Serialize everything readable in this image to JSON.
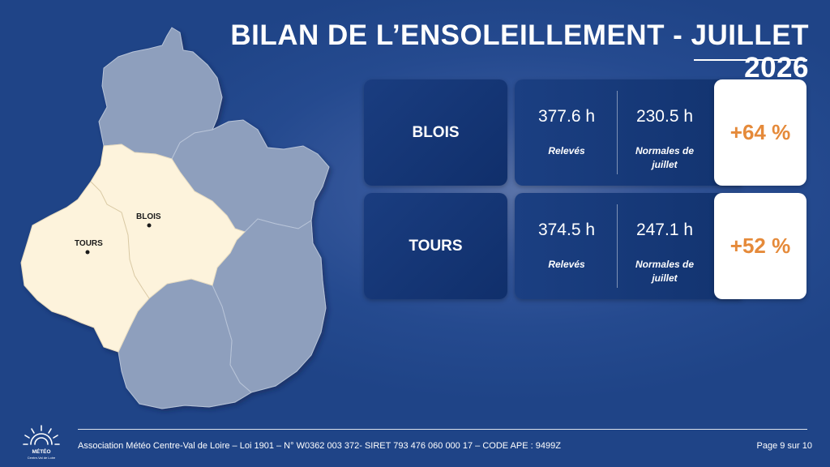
{
  "header": {
    "title": "BILAN DE L’ENSOLEILLEMENT - JUILLET 2026"
  },
  "map": {
    "cities": [
      {
        "label": "BLOIS"
      },
      {
        "label": "TOURS"
      }
    ],
    "highlight_color": "#fdf3dc",
    "region_color": "#8e9fbd"
  },
  "rows": [
    {
      "city": "BLOIS",
      "observed_value": "377.6 h",
      "observed_label": "Relevés",
      "normal_value": "230.5 h",
      "normal_label": "Normales de juillet",
      "delta": "+64 %"
    },
    {
      "city": "TOURS",
      "observed_value": "374.5 h",
      "observed_label": "Relevés",
      "normal_value": "247.1 h",
      "normal_label": "Normales de juillet",
      "delta": "+52 %"
    }
  ],
  "footer": {
    "text": "Association Météo Centre-Val de Loire – Loi 1901 – N° W0362 003 372- SIRET 793 476 060 000 17 – CODE APE : 9499Z",
    "page": "Page 9 sur 10",
    "logo_text": "MÉTÉO",
    "logo_subtext": "Centre-Val de Loire"
  },
  "colors": {
    "accent_orange": "#e58a3a",
    "card_dark": "#12336f"
  }
}
